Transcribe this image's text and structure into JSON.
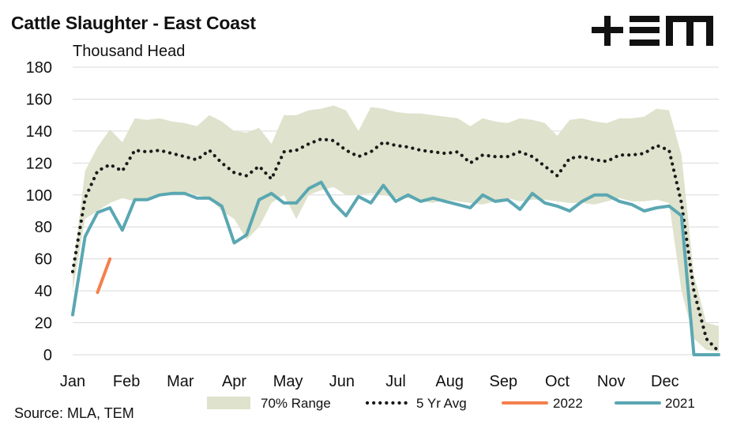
{
  "chart_data": {
    "type": "line",
    "title": "Cattle Slaughter - East Coast",
    "units_label": "Thousand Head",
    "source": "Source: MLA, TEM",
    "brand": "+EM",
    "ylim": [
      0,
      180
    ],
    "y_ticks": [
      "0",
      "20",
      "40",
      "60",
      "80",
      "100",
      "120",
      "140",
      "160",
      "180"
    ],
    "x_month_labels": [
      "Jan",
      "Feb",
      "Mar",
      "Apr",
      "May",
      "Jun",
      "Jul",
      "Aug",
      "Sep",
      "Oct",
      "Nov",
      "Dec"
    ],
    "grid": "horizontal",
    "legend_position": "bottom",
    "colors": {
      "range": "#dfe2cc",
      "avg": "#1a1a1a",
      "y2022": "#f4804c",
      "y2021": "#5aa7b2",
      "grid": "#d9d9d9"
    },
    "weeks": [
      1,
      2,
      3,
      4,
      5,
      6,
      7,
      8,
      9,
      10,
      11,
      12,
      13,
      14,
      15,
      16,
      17,
      18,
      19,
      20,
      21,
      22,
      23,
      24,
      25,
      26,
      27,
      28,
      29,
      30,
      31,
      32,
      33,
      34,
      35,
      36,
      37,
      38,
      39,
      40,
      41,
      42,
      43,
      44,
      45,
      46,
      47,
      48,
      49,
      50,
      51,
      52,
      53
    ],
    "series": [
      {
        "name": "70% Range",
        "kind": "band",
        "low": [
          40,
          85,
          90,
          95,
          98,
          96,
          98,
          100,
          101,
          102,
          100,
          98,
          90,
          85,
          72,
          80,
          95,
          100,
          85,
          100,
          103,
          105,
          100,
          100,
          101,
          100,
          98,
          98,
          96,
          95,
          97,
          96,
          95,
          94,
          96,
          98,
          96,
          97,
          97,
          96,
          95,
          95,
          94,
          96,
          98,
          96,
          96,
          97,
          95,
          40,
          10,
          3,
          2
        ],
        "high": [
          52,
          115,
          130,
          141,
          133,
          148,
          147,
          148,
          146,
          145,
          143,
          150,
          146,
          140,
          139,
          142,
          132,
          150,
          150,
          153,
          154,
          156,
          153,
          140,
          155,
          154,
          152,
          151,
          151,
          150,
          149,
          148,
          143,
          148,
          146,
          145,
          148,
          147,
          145,
          137,
          147,
          148,
          146,
          145,
          148,
          148,
          149,
          154,
          153,
          125,
          50,
          20,
          18
        ]
      },
      {
        "name": "5 Yr Avg",
        "kind": "dotted",
        "values": [
          52,
          98,
          115,
          119,
          115,
          128,
          127,
          128,
          126,
          124,
          122,
          128,
          120,
          114,
          112,
          118,
          110,
          127,
          128,
          132,
          135,
          134,
          128,
          124,
          127,
          133,
          131,
          130,
          128,
          127,
          126,
          127,
          120,
          125,
          124,
          124,
          127,
          124,
          118,
          112,
          123,
          124,
          122,
          121,
          125,
          125,
          126,
          131,
          128,
          95,
          40,
          10,
          2
        ]
      },
      {
        "name": "2022",
        "kind": "line",
        "values": [
          null,
          null,
          39,
          60,
          null,
          null,
          null,
          null,
          null,
          null,
          null,
          null,
          null,
          null,
          null,
          null,
          null,
          null,
          null,
          null,
          null,
          null,
          null,
          null,
          null,
          null,
          null,
          null,
          null,
          null,
          null,
          null,
          null,
          null,
          null,
          null,
          null,
          null,
          null,
          null,
          null,
          null,
          null,
          null,
          null,
          null,
          null,
          null,
          null,
          null,
          null,
          null,
          null
        ]
      },
      {
        "name": "2021",
        "kind": "line",
        "values": [
          25,
          74,
          89,
          92,
          78,
          97,
          97,
          100,
          101,
          101,
          98,
          98,
          93,
          70,
          75,
          97,
          101,
          95,
          95,
          104,
          108,
          95,
          87,
          99,
          95,
          106,
          96,
          100,
          96,
          98,
          96,
          94,
          92,
          100,
          96,
          97,
          91,
          101,
          95,
          93,
          90,
          96,
          100,
          100,
          96,
          94,
          90,
          92,
          93,
          87,
          0,
          0,
          0
        ]
      }
    ]
  }
}
